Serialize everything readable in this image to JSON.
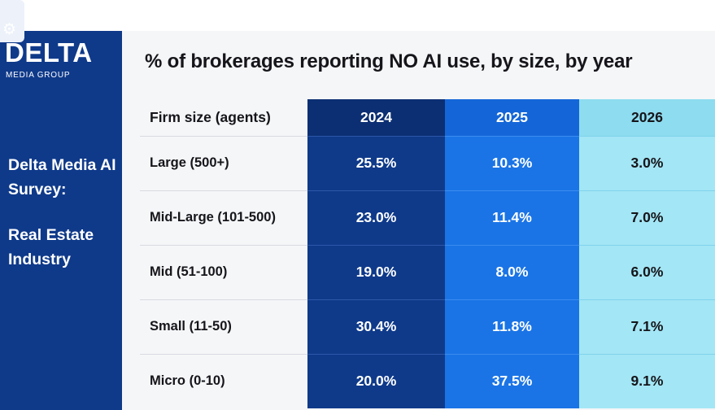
{
  "brand": {
    "icon": "gear-icon",
    "wordmark": "DELTA",
    "tagline": "MEDIA GROUP"
  },
  "sidebar": {
    "title": "Delta Media AI Survey:",
    "subtitle": "Real Estate Industry"
  },
  "colors": {
    "navy": "#0f3a8a",
    "year_2024": "#0f3a8a",
    "year_2025": "#1a74e6",
    "year_2026": "#a3e6f5"
  },
  "chart_data": {
    "type": "table",
    "title": "% of brokerages reporting NO AI use, by size, by year",
    "row_header": "Firm size (agents)",
    "columns": [
      "2024",
      "2025",
      "2026"
    ],
    "rows": [
      {
        "label": "Large (500+)",
        "values": [
          "25.5%",
          "10.3%",
          "3.0%"
        ]
      },
      {
        "label": "Mid-Large (101-500)",
        "values": [
          "23.0%",
          "11.4%",
          "7.0%"
        ]
      },
      {
        "label": "Mid (51-100)",
        "values": [
          "19.0%",
          "8.0%",
          "6.0%"
        ]
      },
      {
        "label": "Small (11-50)",
        "values": [
          "30.4%",
          "11.8%",
          "7.1%"
        ]
      },
      {
        "label": "Micro (0-10)",
        "values": [
          "20.0%",
          "37.5%",
          "9.1%"
        ]
      }
    ]
  }
}
